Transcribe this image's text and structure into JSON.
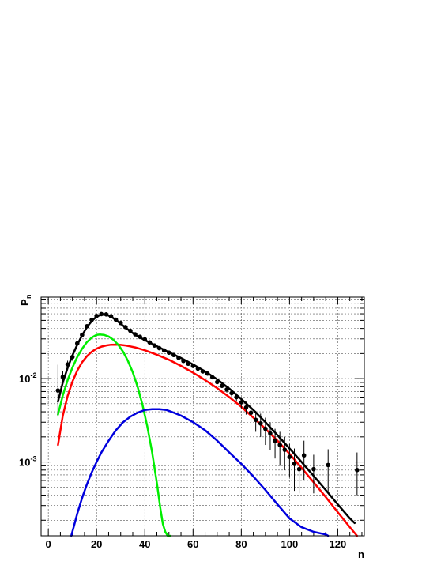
{
  "chart_data": {
    "type": "line",
    "xlabel": "n",
    "ylabel_main": "P",
    "ylabel_sub": "n",
    "xlim": [
      -3,
      131
    ],
    "ylim": [
      0.00013,
      0.095
    ],
    "log_y": true,
    "grid": true,
    "x_ticks": [
      0,
      20,
      40,
      60,
      80,
      100,
      120
    ],
    "x_tick_labels": [
      "0",
      "20",
      "40",
      "60",
      "80",
      "100",
      "120"
    ],
    "y_major_ticks": [
      0.001,
      0.01
    ],
    "y_tick_labels": [
      {
        "base": "10",
        "exp": "-3"
      },
      {
        "base": "10",
        "exp": "-2"
      }
    ],
    "points": {
      "color": "#000000",
      "x": [
        4,
        6,
        8,
        10,
        12,
        14,
        16,
        18,
        20,
        22,
        24,
        26,
        28,
        30,
        32,
        34,
        36,
        38,
        40,
        42,
        44,
        46,
        48,
        50,
        52,
        54,
        56,
        58,
        60,
        62,
        64,
        66,
        68,
        70,
        72,
        74,
        76,
        78,
        80,
        82,
        84,
        86,
        88,
        90,
        92,
        94,
        96,
        98,
        100,
        102,
        104,
        106,
        110,
        116,
        128
      ],
      "y": [
        0.0072,
        0.0105,
        0.0148,
        0.0182,
        0.0265,
        0.0335,
        0.0425,
        0.0508,
        0.0565,
        0.0595,
        0.059,
        0.056,
        0.051,
        0.0465,
        0.0415,
        0.0375,
        0.034,
        0.0318,
        0.0296,
        0.0272,
        0.025,
        0.0232,
        0.0218,
        0.0205,
        0.0192,
        0.0178,
        0.0163,
        0.0151,
        0.0142,
        0.0132,
        0.0122,
        0.0115,
        0.0104,
        0.0091,
        0.0082,
        0.0074,
        0.0067,
        0.006,
        0.0052,
        0.0045,
        0.0039,
        0.0032,
        0.0029,
        0.0025,
        0.0022,
        0.0018,
        0.0016,
        0.0014,
        0.00115,
        0.00095,
        0.00082,
        0.0012,
        0.00082,
        0.00092,
        0.0008
      ],
      "err_lo": [
        0.0037,
        0.0017,
        0.0016,
        0.0018,
        0.0018,
        0.0018,
        0.0018,
        0.0018,
        0.0018,
        0.0018,
        0.0018,
        0.0018,
        0.0018,
        0.0018,
        0.0015,
        0.0013,
        0.0011,
        0.001,
        0.0009,
        0.0008,
        0.0007,
        0.0007,
        0.0006,
        0.0006,
        0.0006,
        0.0006,
        0.0005,
        0.0005,
        0.0005,
        0.0005,
        0.0005,
        0.0005,
        0.0005,
        0.0005,
        0.0005,
        0.0006,
        0.0006,
        0.0007,
        0.0008,
        0.0008,
        0.0009,
        0.0009,
        0.0009,
        0.0009,
        0.0008,
        0.0007,
        0.0007,
        0.0006,
        0.0005,
        0.0005,
        0.0004,
        0.0006,
        0.0004,
        0.0005,
        0.0004
      ],
      "err_hi": [
        0.0075,
        0.0018,
        0.0016,
        0.0018,
        0.0018,
        0.0018,
        0.0018,
        0.0018,
        0.0018,
        0.0018,
        0.0018,
        0.0018,
        0.0018,
        0.0018,
        0.0015,
        0.0013,
        0.0011,
        0.001,
        0.0009,
        0.0008,
        0.0007,
        0.0007,
        0.0006,
        0.0006,
        0.0006,
        0.0006,
        0.0005,
        0.0005,
        0.0005,
        0.0005,
        0.0005,
        0.0005,
        0.0005,
        0.0005,
        0.0005,
        0.0006,
        0.0006,
        0.0007,
        0.0008,
        0.0008,
        0.0009,
        0.0009,
        0.0009,
        0.0009,
        0.0008,
        0.0007,
        0.0007,
        0.0006,
        0.0005,
        0.0005,
        0.0004,
        0.0006,
        0.0004,
        0.0005,
        0.0005
      ]
    },
    "series": [
      {
        "color": "#000000",
        "x": [
          4,
          6,
          8,
          10,
          12,
          14,
          16,
          18,
          20,
          22,
          24,
          26,
          28,
          30,
          32,
          34,
          36,
          38,
          40,
          45,
          50,
          55,
          60,
          65,
          70,
          75,
          80,
          85,
          90,
          95,
          100,
          105,
          110,
          115,
          120,
          125,
          127
        ],
        "y": [
          0.0053,
          0.009,
          0.0135,
          0.019,
          0.0255,
          0.033,
          0.0415,
          0.049,
          0.0555,
          0.0585,
          0.0585,
          0.0555,
          0.0505,
          0.0455,
          0.041,
          0.037,
          0.0336,
          0.0312,
          0.029,
          0.0245,
          0.0207,
          0.0177,
          0.0148,
          0.0122,
          0.0098,
          0.0076,
          0.0057,
          0.0042,
          0.003,
          0.0021,
          0.00145,
          0.001,
          0.00068,
          0.00046,
          0.00031,
          0.00021,
          0.000185
        ]
      },
      {
        "color": "#ff0000",
        "x": [
          4,
          6,
          8,
          10,
          12,
          14,
          16,
          18,
          20,
          22,
          24,
          26,
          28,
          30,
          32,
          34,
          36,
          40,
          45,
          50,
          55,
          60,
          65,
          70,
          75,
          80,
          85,
          90,
          95,
          100,
          105,
          110,
          115,
          120,
          125,
          128
        ],
        "y": [
          0.0016,
          0.0036,
          0.0062,
          0.0092,
          0.0125,
          0.0157,
          0.0186,
          0.021,
          0.0229,
          0.0242,
          0.025,
          0.0255,
          0.0256,
          0.0254,
          0.025,
          0.0244,
          0.0237,
          0.0219,
          0.0194,
          0.0168,
          0.0142,
          0.0118,
          0.0096,
          0.0077,
          0.006,
          0.0046,
          0.0034,
          0.0025,
          0.0018,
          0.00125,
          0.00085,
          0.00057,
          0.00038,
          0.00025,
          0.000165,
          0.00013
        ]
      },
      {
        "color": "#00ee00",
        "x": [
          4,
          6,
          8,
          10,
          12,
          14,
          16,
          18,
          20,
          21.5,
          23,
          25,
          27,
          29,
          31,
          33,
          35,
          37,
          39,
          41,
          43,
          45,
          46.5,
          47.5,
          48.5,
          49.5,
          50.5
        ],
        "y": [
          0.0037,
          0.0063,
          0.0096,
          0.0136,
          0.0182,
          0.0229,
          0.0274,
          0.0311,
          0.0335,
          0.0338,
          0.0335,
          0.032,
          0.0292,
          0.0254,
          0.021,
          0.0163,
          0.0119,
          0.008,
          0.0049,
          0.0027,
          0.00132,
          0.00056,
          0.00027,
          0.00018,
          0.000145,
          0.00013,
          0.00013
        ]
      },
      {
        "color": "#0000dd",
        "x": [
          9.5,
          10.5,
          12,
          14,
          16,
          18,
          20,
          22,
          25,
          28,
          31,
          34,
          37,
          40,
          43,
          46,
          49,
          52,
          55,
          60,
          65,
          70,
          75,
          80,
          85,
          90,
          95,
          100,
          105,
          110,
          115,
          116
        ],
        "y": [
          0.00013,
          0.000165,
          0.00024,
          0.00037,
          0.00054,
          0.00075,
          0.001,
          0.0013,
          0.0018,
          0.0024,
          0.003,
          0.0035,
          0.0039,
          0.0042,
          0.0043,
          0.0043,
          0.0042,
          0.0039,
          0.0036,
          0.003,
          0.0024,
          0.0018,
          0.0013,
          0.00095,
          0.00067,
          0.00046,
          0.00031,
          0.00021,
          0.000165,
          0.000145,
          0.000135,
          0.00013
        ]
      }
    ]
  }
}
